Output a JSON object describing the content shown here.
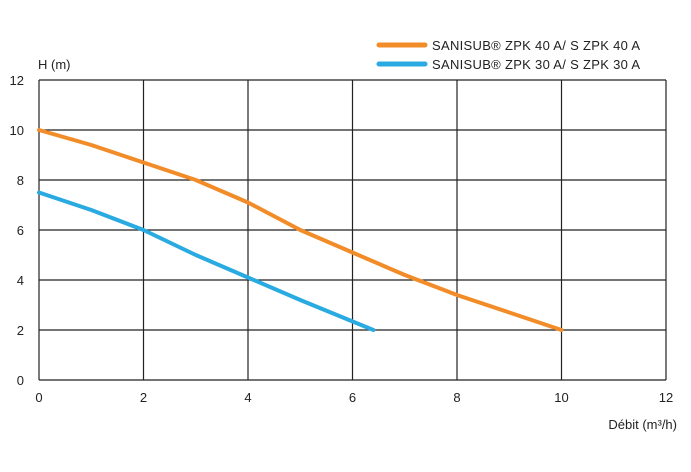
{
  "chart_data": {
    "type": "line",
    "xlabel": "Débit (m³/h)",
    "ylabel": "H (m)",
    "xlim": [
      0,
      12
    ],
    "ylim": [
      0,
      12
    ],
    "xticks": [
      0,
      2,
      4,
      6,
      8,
      10,
      12
    ],
    "yticks": [
      0,
      2,
      4,
      6,
      8,
      10,
      12
    ],
    "grid": true,
    "legend_position": "top-right",
    "series": [
      {
        "name": "SANISUB® ZPK 40 A/ S ZPK 40 A",
        "color": "#f28c28",
        "x": [
          0,
          1,
          2,
          3,
          4,
          5,
          6,
          7,
          8,
          9,
          10
        ],
        "y": [
          10,
          9.4,
          8.7,
          8.0,
          7.1,
          6.0,
          5.1,
          4.2,
          3.4,
          2.7,
          2.0
        ]
      },
      {
        "name": "SANISUB® ZPK 30 A/ S ZPK 30 A",
        "color": "#29abe2",
        "x": [
          0,
          1,
          2,
          3,
          4,
          5,
          6.4
        ],
        "y": [
          7.5,
          6.8,
          6.0,
          5.0,
          4.1,
          3.2,
          2.0
        ]
      }
    ]
  }
}
